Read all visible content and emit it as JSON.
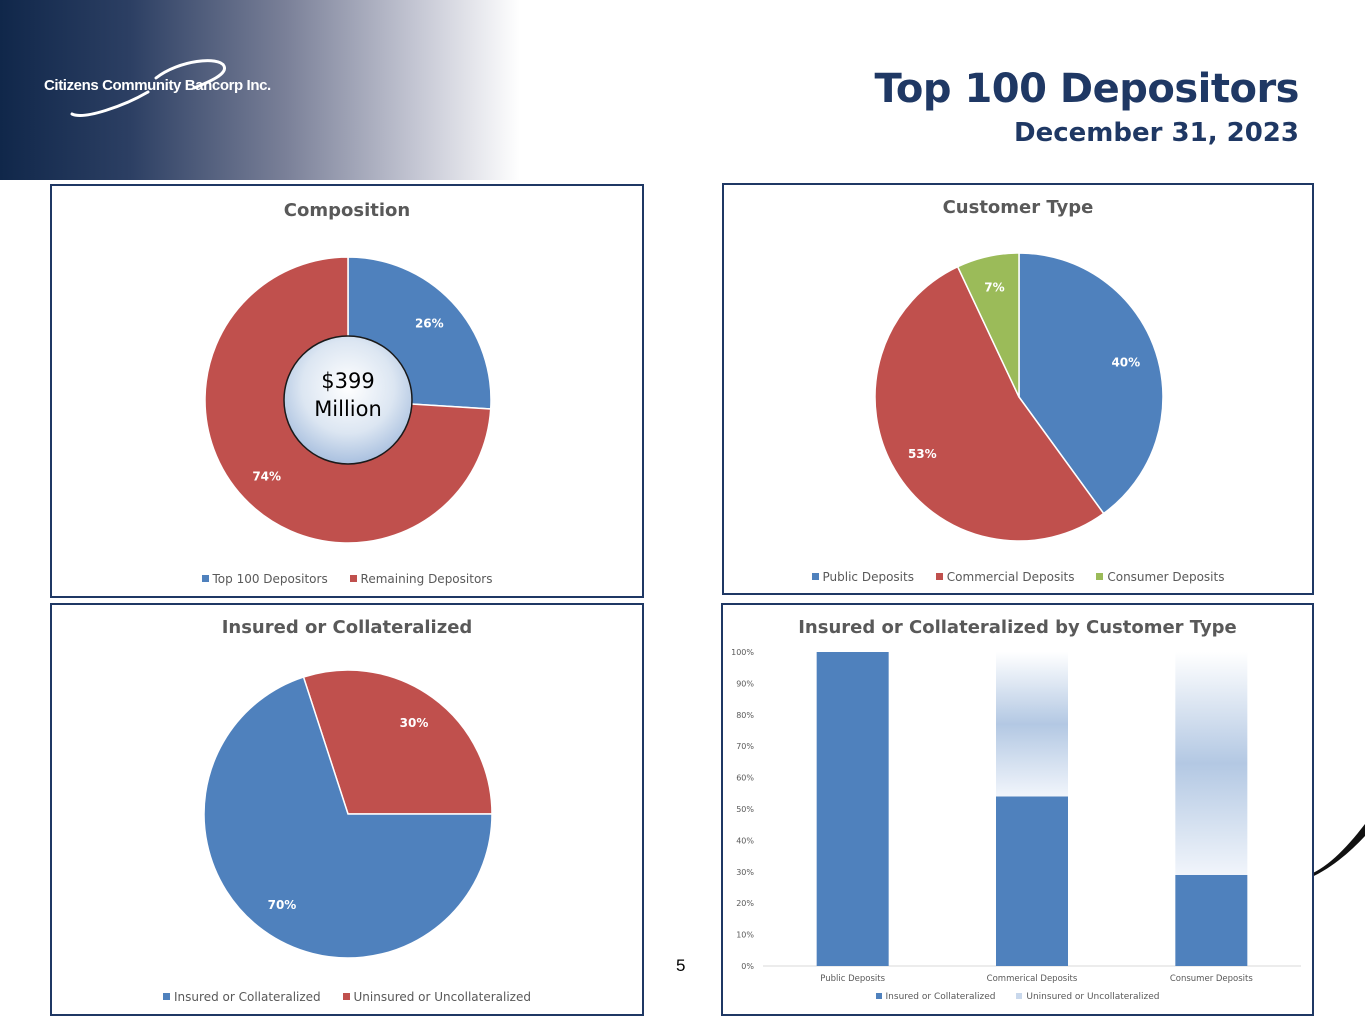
{
  "header": {
    "logo_text": "Citizens Community Bancorp Inc.",
    "title": "Top 100 Depositors",
    "subtitle": "December 31, 2023"
  },
  "page_number": "5",
  "colors": {
    "blue": "#4f81bd",
    "red": "#c0504d",
    "green": "#9bbb59",
    "navy": "#1f3864",
    "light_blue": "#b8cce4"
  },
  "chart_data": [
    {
      "id": "composition",
      "type": "pie",
      "title": "Composition",
      "center_label": "$399 Million",
      "center_line1": "$399",
      "center_line2": "Million",
      "categories": [
        "Top 100 Depositors",
        "Remaining Depositors"
      ],
      "values": [
        26,
        74
      ],
      "labels": [
        "26%",
        "74%"
      ]
    },
    {
      "id": "customer_type",
      "type": "pie",
      "title": "Customer Type",
      "categories": [
        "Public Deposits",
        "Commercial Deposits",
        "Consumer Deposits"
      ],
      "values": [
        40,
        53,
        7
      ],
      "labels": [
        "40%",
        "53%",
        "7%"
      ]
    },
    {
      "id": "insured",
      "type": "pie",
      "title": "Insured or Collateralized",
      "categories": [
        "Uninsured or Uncollateralized",
        "Insured or Collateralized"
      ],
      "values": [
        30,
        70
      ],
      "labels": [
        "30%",
        "70%"
      ],
      "legend": [
        "Insured or Collateralized",
        "Uninsured or Uncollateralized"
      ]
    },
    {
      "id": "insured_by_type",
      "type": "bar",
      "stacked": true,
      "title": "Insured or Collateralized by Customer Type",
      "categories": [
        "Public Deposits",
        "Commerical Deposits",
        "Consumer Deposits"
      ],
      "series": [
        {
          "name": "Insured or Collateralized",
          "values": [
            100,
            54,
            29
          ]
        },
        {
          "name": "Uninsured or Uncollateralized",
          "values": [
            0,
            46,
            71
          ]
        }
      ],
      "ylim": [
        0,
        100
      ],
      "yticks": [
        "0%",
        "10%",
        "20%",
        "30%",
        "40%",
        "50%",
        "60%",
        "70%",
        "80%",
        "90%",
        "100%"
      ]
    }
  ]
}
